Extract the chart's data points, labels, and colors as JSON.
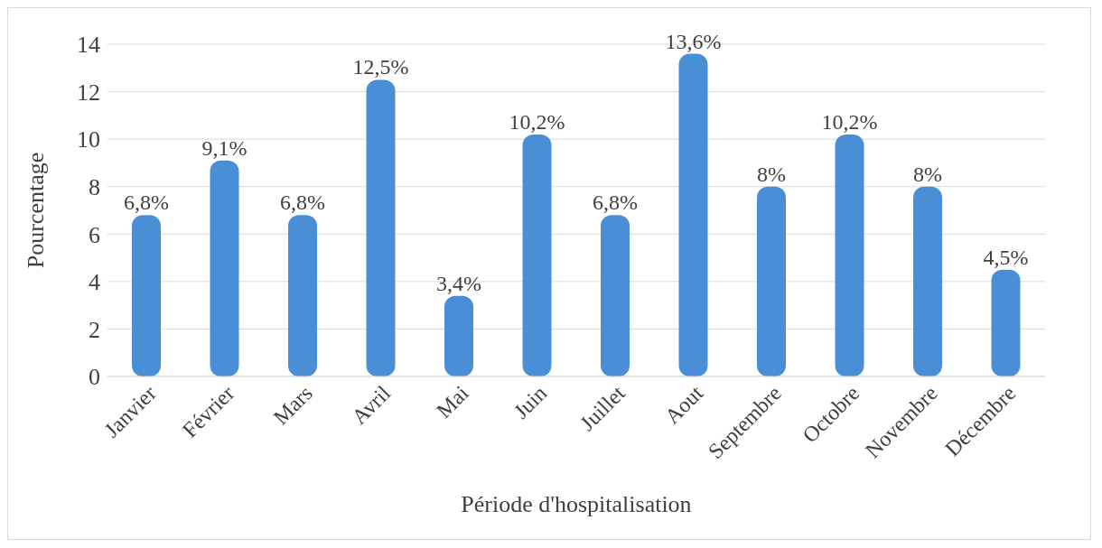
{
  "chart_data": {
    "type": "bar",
    "xlabel": "Période d'hospitalisation",
    "ylabel": "Pourcentage",
    "categories": [
      "Janvier",
      "Février",
      "Mars",
      "Avril",
      "Mai",
      "Juin",
      "Juillet",
      "Aout",
      "Septembre",
      "Octobre",
      "Novembre",
      "Décembre"
    ],
    "values": [
      6.8,
      9.1,
      6.8,
      12.5,
      3.4,
      10.2,
      6.8,
      13.6,
      8,
      10.2,
      8,
      4.5
    ],
    "value_labels": [
      "6,8%",
      "9,1%",
      "6,8%",
      "12,5%",
      "3,4%",
      "10,2%",
      "6,8%",
      "13,6%",
      "8%",
      "10,2%",
      "8%",
      "4,5%"
    ],
    "color": "#4a8fd6",
    "ylim": [
      0,
      14
    ],
    "yticks": [
      0,
      2,
      4,
      6,
      8,
      10,
      12,
      14
    ],
    "grid": "y",
    "legend": false
  }
}
